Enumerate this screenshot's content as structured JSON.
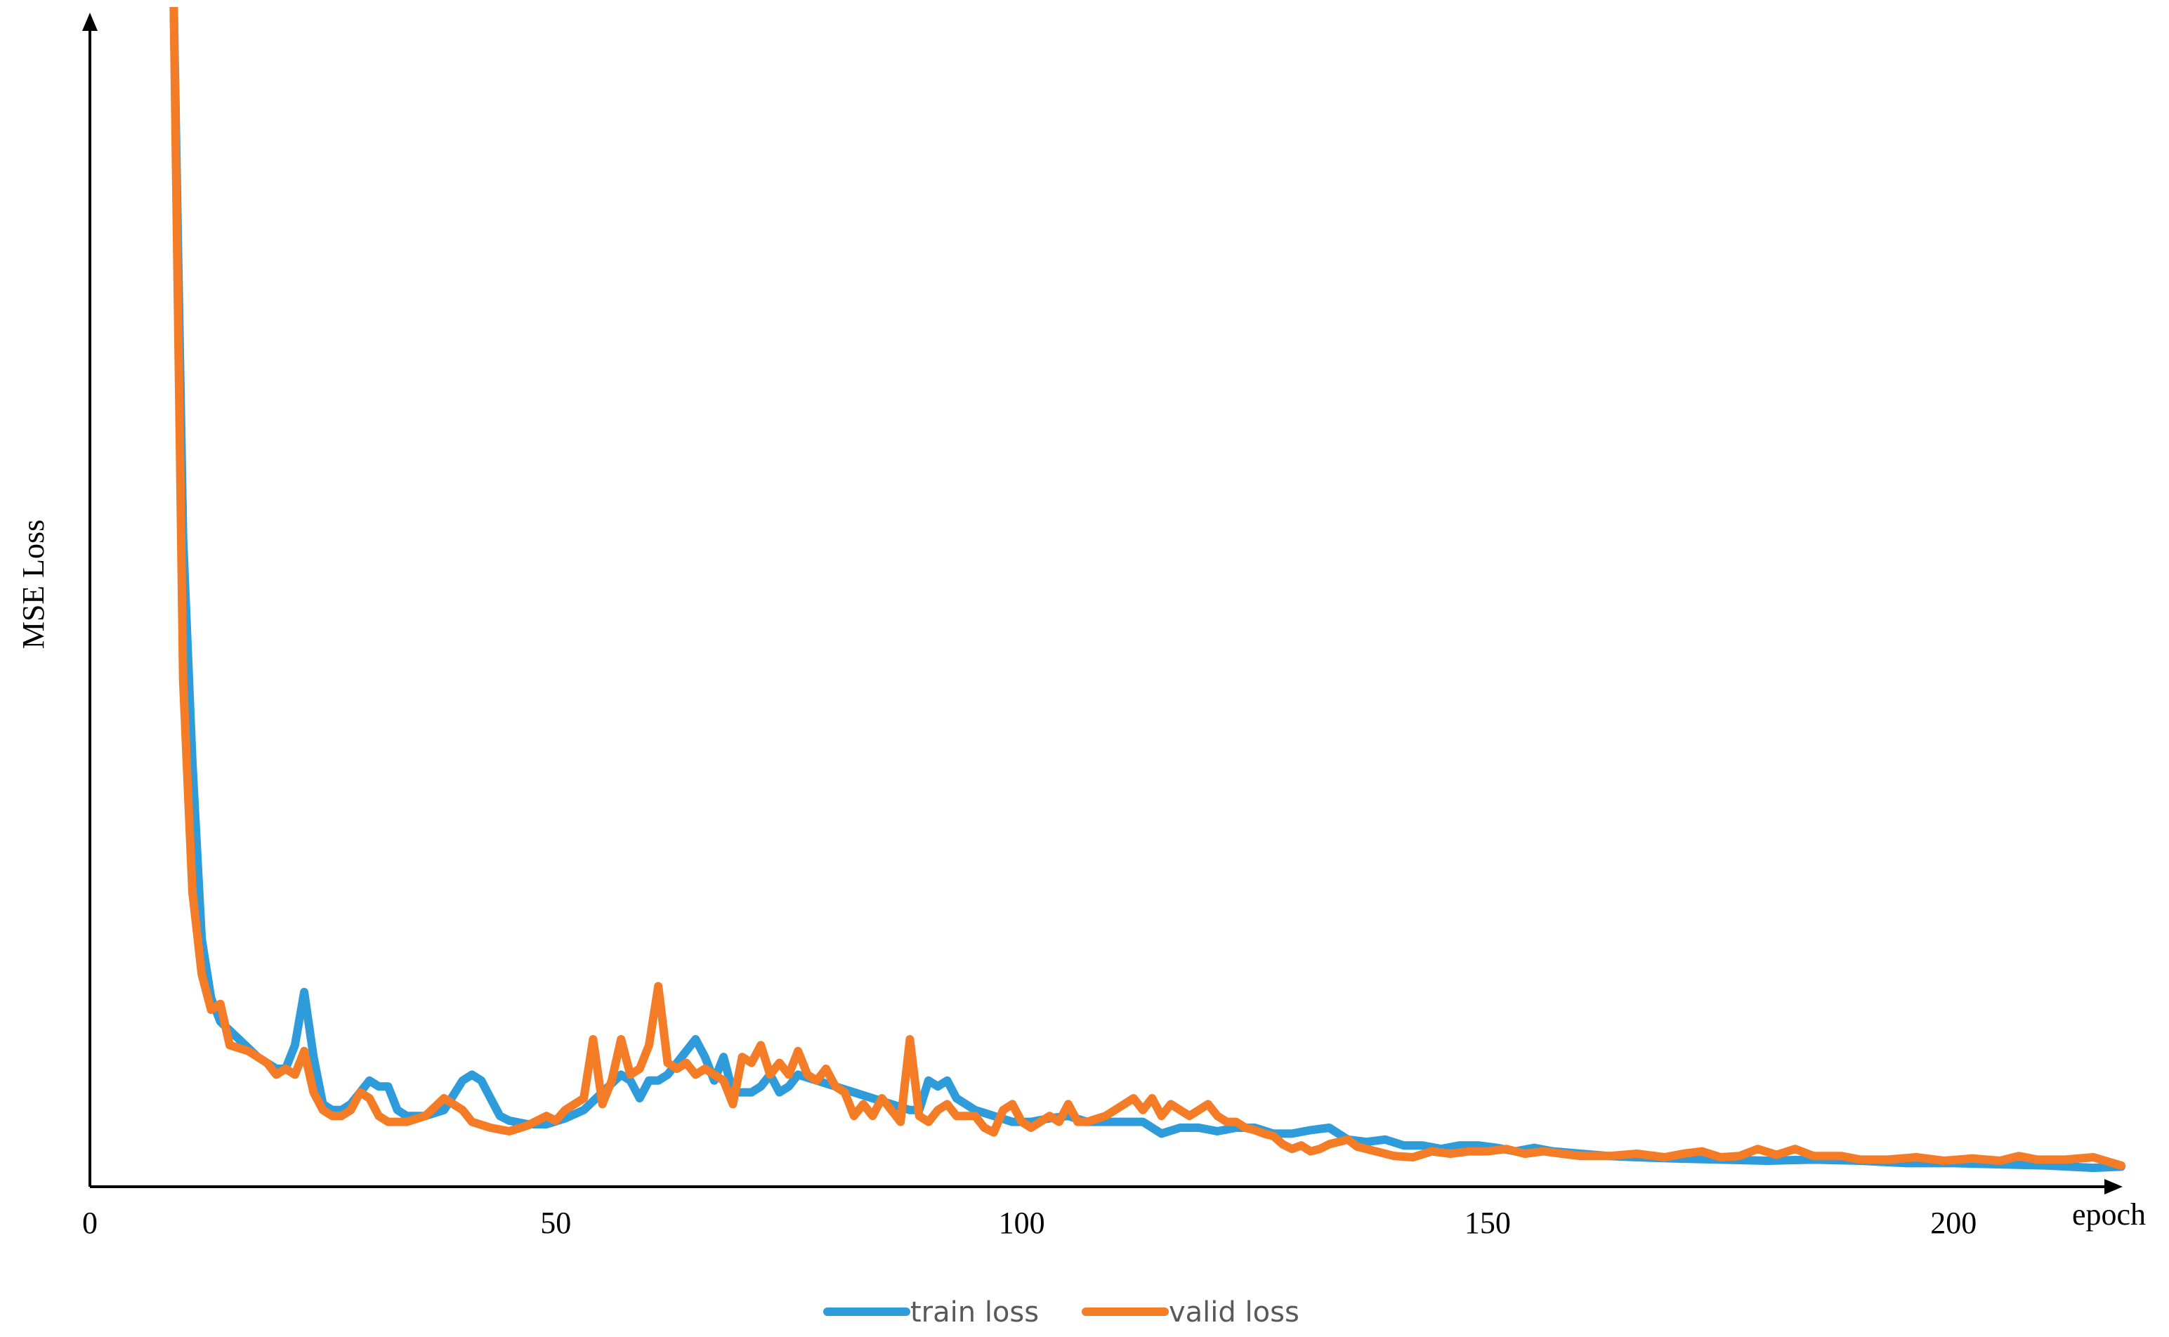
{
  "chart_data": {
    "type": "line",
    "title": "",
    "xlabel": "epoch",
    "ylabel": "MSE Loss",
    "xlim": [
      0,
      218
    ],
    "ylim": [
      0,
      100
    ],
    "xticks": [
      0,
      50,
      100,
      150,
      200
    ],
    "y_tick_labels": false,
    "grid": false,
    "legend_position": "bottom-center",
    "series": [
      {
        "name": "train loss",
        "color": "#2E9BDA",
        "points": [
          [
            9,
            100
          ],
          [
            10,
            55
          ],
          [
            11,
            36
          ],
          [
            12,
            21
          ],
          [
            13,
            16
          ],
          [
            14,
            14
          ],
          [
            16,
            12.5
          ],
          [
            18,
            11
          ],
          [
            20,
            10
          ],
          [
            21,
            10
          ],
          [
            22,
            12
          ],
          [
            23,
            16.5
          ],
          [
            24,
            11
          ],
          [
            25,
            7
          ],
          [
            26,
            6.5
          ],
          [
            27,
            6.5
          ],
          [
            28,
            7
          ],
          [
            29,
            8
          ],
          [
            30,
            9
          ],
          [
            31,
            8.5
          ],
          [
            32,
            8.5
          ],
          [
            33,
            6.5
          ],
          [
            34,
            6
          ],
          [
            36,
            6
          ],
          [
            38,
            6.5
          ],
          [
            40,
            9
          ],
          [
            41,
            9.5
          ],
          [
            42,
            9
          ],
          [
            43,
            7.5
          ],
          [
            44,
            6
          ],
          [
            45,
            5.6
          ],
          [
            47,
            5.3
          ],
          [
            49,
            5.3
          ],
          [
            51,
            5.8
          ],
          [
            53,
            6.5
          ],
          [
            55,
            8
          ],
          [
            57,
            9.5
          ],
          [
            58,
            9
          ],
          [
            59,
            7.5
          ],
          [
            60,
            9
          ],
          [
            61,
            9
          ],
          [
            62,
            9.5
          ],
          [
            63,
            10.5
          ],
          [
            64,
            11.5
          ],
          [
            65,
            12.5
          ],
          [
            66,
            11
          ],
          [
            67,
            9
          ],
          [
            68,
            11
          ],
          [
            69,
            8
          ],
          [
            70,
            8
          ],
          [
            71,
            8
          ],
          [
            72,
            8.5
          ],
          [
            73,
            9.5
          ],
          [
            74,
            8
          ],
          [
            75,
            8.5
          ],
          [
            76,
            9.5
          ],
          [
            78,
            9
          ],
          [
            80,
            8.5
          ],
          [
            82,
            8
          ],
          [
            84,
            7.5
          ],
          [
            86,
            7
          ],
          [
            88,
            6.5
          ],
          [
            89,
            6.5
          ],
          [
            90,
            9
          ],
          [
            91,
            8.5
          ],
          [
            92,
            9
          ],
          [
            93,
            7.5
          ],
          [
            95,
            6.5
          ],
          [
            97,
            6
          ],
          [
            99,
            5.5
          ],
          [
            101,
            5.5
          ],
          [
            103,
            5.8
          ],
          [
            105,
            6
          ],
          [
            107,
            5.5
          ],
          [
            109,
            5.5
          ],
          [
            111,
            5.5
          ],
          [
            113,
            5.5
          ],
          [
            115,
            4.5
          ],
          [
            117,
            5
          ],
          [
            119,
            5
          ],
          [
            121,
            4.7
          ],
          [
            123,
            5
          ],
          [
            125,
            5
          ],
          [
            127,
            4.5
          ],
          [
            129,
            4.5
          ],
          [
            131,
            4.8
          ],
          [
            133,
            5
          ],
          [
            135,
            4
          ],
          [
            137,
            3.8
          ],
          [
            139,
            4
          ],
          [
            141,
            3.5
          ],
          [
            143,
            3.5
          ],
          [
            145,
            3.2
          ],
          [
            147,
            3.5
          ],
          [
            149,
            3.5
          ],
          [
            151,
            3.3
          ],
          [
            153,
            3
          ],
          [
            155,
            3.3
          ],
          [
            157,
            3
          ],
          [
            160,
            2.8
          ],
          [
            163,
            2.6
          ],
          [
            166,
            2.5
          ],
          [
            170,
            2.4
          ],
          [
            175,
            2.3
          ],
          [
            180,
            2.2
          ],
          [
            185,
            2.3
          ],
          [
            190,
            2.2
          ],
          [
            195,
            2
          ],
          [
            200,
            2
          ],
          [
            205,
            1.9
          ],
          [
            210,
            1.8
          ],
          [
            215,
            1.6
          ],
          [
            218,
            1.7
          ]
        ]
      },
      {
        "name": "valid loss",
        "color": "#F47C26",
        "points": [
          [
            9,
            100
          ],
          [
            10,
            43
          ],
          [
            11,
            25
          ],
          [
            12,
            18
          ],
          [
            13,
            15
          ],
          [
            14,
            15.5
          ],
          [
            15,
            12
          ],
          [
            17,
            11.5
          ],
          [
            19,
            10.5
          ],
          [
            20,
            9.5
          ],
          [
            21,
            10
          ],
          [
            22,
            9.5
          ],
          [
            23,
            11.5
          ],
          [
            24,
            8
          ],
          [
            25,
            6.5
          ],
          [
            26,
            6
          ],
          [
            27,
            6
          ],
          [
            28,
            6.5
          ],
          [
            29,
            8
          ],
          [
            30,
            7.5
          ],
          [
            31,
            6
          ],
          [
            32,
            5.5
          ],
          [
            34,
            5.5
          ],
          [
            36,
            6
          ],
          [
            38,
            7.5
          ],
          [
            39,
            7
          ],
          [
            40,
            6.5
          ],
          [
            41,
            5.5
          ],
          [
            43,
            5
          ],
          [
            45,
            4.7
          ],
          [
            47,
            5.2
          ],
          [
            49,
            6
          ],
          [
            50,
            5.6
          ],
          [
            51,
            6.5
          ],
          [
            53,
            7.5
          ],
          [
            54,
            12.5
          ],
          [
            55,
            7
          ],
          [
            56,
            9
          ],
          [
            57,
            12.5
          ],
          [
            58,
            9.5
          ],
          [
            59,
            10
          ],
          [
            60,
            12
          ],
          [
            61,
            17
          ],
          [
            62,
            10.5
          ],
          [
            63,
            10
          ],
          [
            64,
            10.5
          ],
          [
            65,
            9.5
          ],
          [
            66,
            10
          ],
          [
            67,
            9.5
          ],
          [
            68,
            9
          ],
          [
            69,
            7
          ],
          [
            70,
            11
          ],
          [
            71,
            10.5
          ],
          [
            72,
            12
          ],
          [
            73,
            9.5
          ],
          [
            74,
            10.5
          ],
          [
            75,
            9.5
          ],
          [
            76,
            11.5
          ],
          [
            77,
            9.5
          ],
          [
            78,
            9
          ],
          [
            79,
            10
          ],
          [
            80,
            8.5
          ],
          [
            81,
            8
          ],
          [
            82,
            6
          ],
          [
            83,
            7
          ],
          [
            84,
            6
          ],
          [
            85,
            7.5
          ],
          [
            86,
            6.5
          ],
          [
            87,
            5.5
          ],
          [
            88,
            12.5
          ],
          [
            89,
            6
          ],
          [
            90,
            5.5
          ],
          [
            91,
            6.5
          ],
          [
            92,
            7
          ],
          [
            93,
            6
          ],
          [
            95,
            6
          ],
          [
            96,
            5
          ],
          [
            97,
            4.6
          ],
          [
            98,
            6.5
          ],
          [
            99,
            7
          ],
          [
            100,
            5.5
          ],
          [
            101,
            5
          ],
          [
            102,
            5.5
          ],
          [
            103,
            6
          ],
          [
            104,
            5.5
          ],
          [
            105,
            7
          ],
          [
            106,
            5.5
          ],
          [
            107,
            5.5
          ],
          [
            109,
            6
          ],
          [
            110,
            6.5
          ],
          [
            111,
            7
          ],
          [
            112,
            7.5
          ],
          [
            113,
            6.5
          ],
          [
            114,
            7.5
          ],
          [
            115,
            6
          ],
          [
            116,
            7
          ],
          [
            117,
            6.5
          ],
          [
            118,
            6
          ],
          [
            119,
            6.5
          ],
          [
            120,
            7
          ],
          [
            121,
            6
          ],
          [
            122,
            5.5
          ],
          [
            123,
            5.5
          ],
          [
            124,
            5
          ],
          [
            125,
            4.8
          ],
          [
            126,
            4.5
          ],
          [
            127,
            4.3
          ],
          [
            128,
            3.6
          ],
          [
            129,
            3.2
          ],
          [
            130,
            3.5
          ],
          [
            131,
            3
          ],
          [
            132,
            3.2
          ],
          [
            133,
            3.6
          ],
          [
            135,
            4
          ],
          [
            136,
            3.4
          ],
          [
            138,
            3
          ],
          [
            140,
            2.6
          ],
          [
            142,
            2.5
          ],
          [
            144,
            3
          ],
          [
            146,
            2.8
          ],
          [
            148,
            3
          ],
          [
            150,
            3
          ],
          [
            152,
            3.2
          ],
          [
            154,
            2.8
          ],
          [
            156,
            3
          ],
          [
            158,
            2.8
          ],
          [
            160,
            2.6
          ],
          [
            163,
            2.6
          ],
          [
            166,
            2.8
          ],
          [
            169,
            2.5
          ],
          [
            171,
            2.8
          ],
          [
            173,
            3
          ],
          [
            175,
            2.5
          ],
          [
            177,
            2.6
          ],
          [
            179,
            3.2
          ],
          [
            181,
            2.7
          ],
          [
            183,
            3.2
          ],
          [
            185,
            2.6
          ],
          [
            188,
            2.6
          ],
          [
            190,
            2.3
          ],
          [
            193,
            2.3
          ],
          [
            196,
            2.5
          ],
          [
            199,
            2.2
          ],
          [
            202,
            2.4
          ],
          [
            205,
            2.2
          ],
          [
            207,
            2.6
          ],
          [
            209,
            2.3
          ],
          [
            212,
            2.3
          ],
          [
            215,
            2.5
          ],
          [
            218,
            1.8
          ]
        ]
      }
    ]
  }
}
